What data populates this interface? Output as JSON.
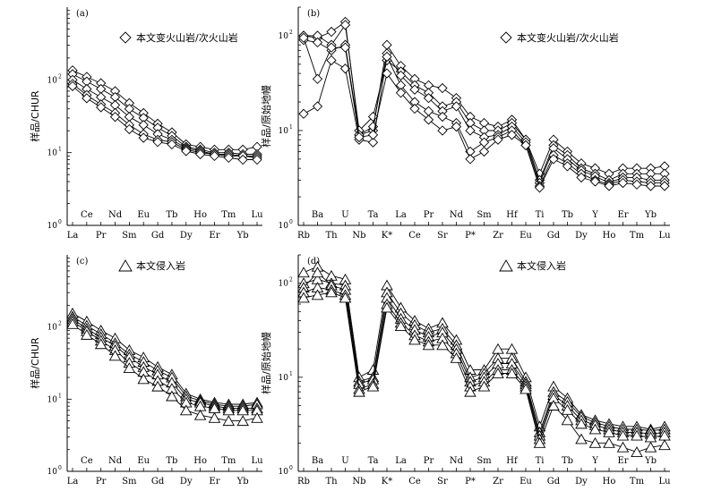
{
  "chart_data": [
    {
      "panel_label": "(a)",
      "type": "line",
      "marker": "diamond",
      "legend": "本文变火山岩/次火山岩",
      "ylabel": "样品/CHUR",
      "yscale": "log",
      "ylim": [
        1,
        1000
      ],
      "yticks": [
        {
          "base": "10",
          "exp": "0"
        },
        {
          "base": "10",
          "exp": "1"
        },
        {
          "base": "10",
          "exp": "2"
        }
      ],
      "categories": [
        "La",
        "Ce",
        "Pr",
        "Nd",
        "Sm",
        "Eu",
        "Gd",
        "Tb",
        "Dy",
        "Ho",
        "Er",
        "Tm",
        "Yb",
        "Lu"
      ],
      "series": [
        {
          "values": [
            135,
            110,
            90,
            70,
            48,
            35,
            25,
            19,
            13,
            12,
            11,
            11,
            11,
            12
          ]
        },
        {
          "values": [
            120,
            95,
            75,
            58,
            40,
            30,
            22,
            17,
            12,
            11,
            10,
            10,
            9.5,
            9.5
          ]
        },
        {
          "values": [
            100,
            75,
            58,
            45,
            31,
            24,
            18,
            15,
            11.5,
            10.5,
            9.5,
            9.5,
            9,
            9
          ]
        },
        {
          "values": [
            88,
            62,
            46,
            35,
            24,
            18,
            15,
            14,
            11,
            10,
            9.5,
            9,
            9,
            8.5
          ]
        },
        {
          "values": [
            82,
            56,
            42,
            31,
            21,
            16,
            14,
            13,
            10.5,
            9.5,
            9,
            8.5,
            8,
            8
          ]
        }
      ]
    },
    {
      "panel_label": "(b)",
      "type": "line",
      "marker": "diamond",
      "legend": "本文变火山岩/次火山岩",
      "ylabel": "样品/原始地幔",
      "yscale": "log",
      "ylim": [
        1,
        200
      ],
      "yticks": [
        {
          "base": "10",
          "exp": "0"
        },
        {
          "base": "10",
          "exp": "1"
        },
        {
          "base": "10",
          "exp": "2"
        }
      ],
      "categories": [
        "Rb",
        "Ba",
        "Th",
        "U",
        "Nb",
        "Ta",
        "K*",
        "La",
        "Ce",
        "Pr",
        "Sr",
        "Nd",
        "P*",
        "Sm",
        "Zr",
        "Hf",
        "Eu",
        "Ti",
        "Gd",
        "Tb",
        "Dy",
        "Y",
        "Ho",
        "Er",
        "Tm",
        "Yb",
        "Lu"
      ],
      "series": [
        {
          "values": [
            100,
            95,
            110,
            140,
            9,
            10,
            80,
            48,
            35,
            30,
            28,
            22,
            14,
            12,
            11,
            13,
            8,
            3.5,
            8,
            6,
            4.5,
            4,
            3.5,
            4,
            4,
            4,
            4.2
          ]
        },
        {
          "values": [
            100,
            100,
            80,
            130,
            10,
            14,
            55,
            42,
            30,
            25,
            18,
            20,
            12,
            10,
            10,
            12,
            8,
            3.0,
            7,
            5.5,
            4,
            3.5,
            3,
            3.5,
            3.5,
            3.5,
            3.5
          ]
        },
        {
          "values": [
            90,
            85,
            70,
            80,
            9,
            11,
            65,
            38,
            27,
            22,
            16,
            18,
            10,
            8.5,
            9,
            11,
            7.5,
            2.8,
            6.5,
            5,
            3.8,
            3.3,
            2.8,
            3.2,
            3.2,
            3,
            3
          ]
        },
        {
          "values": [
            15,
            18,
            55,
            45,
            8,
            7.5,
            60,
            30,
            20,
            16,
            14,
            12,
            6,
            7.5,
            8.5,
            10,
            7,
            2.6,
            5.5,
            4.5,
            3.5,
            3,
            2.7,
            3,
            2.9,
            2.8,
            2.8
          ]
        },
        {
          "values": [
            95,
            35,
            75,
            75,
            8.5,
            9,
            40,
            25,
            17,
            13,
            10,
            11,
            5,
            6,
            8,
            9,
            7,
            2.5,
            5,
            4.2,
            3.2,
            2.9,
            2.6,
            2.8,
            2.7,
            2.6,
            2.6
          ]
        }
      ]
    },
    {
      "panel_label": "(c)",
      "type": "line",
      "marker": "triangle",
      "legend": "本文侵入岩",
      "ylabel": "样品/CHUR",
      "yscale": "log",
      "ylim": [
        1,
        1000
      ],
      "yticks": [
        {
          "base": "10",
          "exp": "0"
        },
        {
          "base": "10",
          "exp": "1"
        },
        {
          "base": "10",
          "exp": "2"
        }
      ],
      "categories": [
        "La",
        "Ce",
        "Pr",
        "Nd",
        "Sm",
        "Eu",
        "Gd",
        "Tb",
        "Dy",
        "Ho",
        "Er",
        "Tm",
        "Yb",
        "Lu"
      ],
      "series": [
        {
          "values": [
            155,
            120,
            90,
            70,
            48,
            38,
            28,
            22,
            12,
            10,
            9,
            8.5,
            8.5,
            9
          ]
        },
        {
          "values": [
            140,
            105,
            80,
            60,
            42,
            33,
            25,
            20,
            11,
            9.5,
            8.5,
            8,
            8,
            8.5
          ]
        },
        {
          "values": [
            130,
            95,
            72,
            55,
            38,
            28,
            22,
            17,
            10,
            9,
            8,
            7.5,
            7.5,
            7.5
          ]
        },
        {
          "values": [
            120,
            88,
            65,
            48,
            32,
            24,
            18,
            14,
            9,
            8,
            7.5,
            7,
            7,
            7
          ]
        },
        {
          "values": [
            110,
            78,
            58,
            40,
            27,
            19,
            15,
            11,
            7,
            6,
            5.5,
            5,
            5,
            5.5
          ]
        }
      ]
    },
    {
      "panel_label": "(d)",
      "type": "line",
      "marker": "triangle",
      "legend": "本文侵入岩",
      "ylabel": "样品/原始地幔",
      "yscale": "log",
      "ylim": [
        1,
        200
      ],
      "yticks": [
        {
          "base": "10",
          "exp": "0"
        },
        {
          "base": "10",
          "exp": "1"
        },
        {
          "base": "10",
          "exp": "2"
        }
      ],
      "categories": [
        "Rb",
        "Ba",
        "Th",
        "U",
        "Nb",
        "Ta",
        "K*",
        "La",
        "Ce",
        "Pr",
        "Sr",
        "Nd",
        "P*",
        "Sm",
        "Zr",
        "Hf",
        "Eu",
        "Ti",
        "Gd",
        "Tb",
        "Dy",
        "Y",
        "Ho",
        "Er",
        "Tm",
        "Yb",
        "Lu"
      ],
      "series": [
        {
          "values": [
            130,
            150,
            120,
            110,
            10,
            12,
            95,
            55,
            40,
            33,
            38,
            25,
            12,
            12,
            20,
            20,
            10,
            3.0,
            8,
            6,
            4,
            3.5,
            3.2,
            3,
            3,
            2.8,
            3
          ]
        },
        {
          "values": [
            100,
            110,
            100,
            95,
            9,
            10,
            80,
            48,
            36,
            30,
            33,
            22,
            10,
            11,
            16,
            16,
            9,
            2.6,
            7,
            5.5,
            3.8,
            3.3,
            3,
            2.8,
            2.8,
            2.7,
            2.8
          ]
        },
        {
          "values": [
            90,
            130,
            95,
            85,
            8.5,
            9.5,
            70,
            42,
            32,
            27,
            30,
            20,
            9,
            10,
            14,
            14,
            8.5,
            2.4,
            6.5,
            5,
            3.5,
            3.1,
            2.8,
            2.6,
            2.6,
            2.5,
            2.6
          ]
        },
        {
          "values": [
            80,
            90,
            85,
            75,
            7.5,
            8.5,
            60,
            38,
            28,
            24,
            26,
            18,
            8,
            9,
            12,
            12,
            8,
            2.2,
            6,
            4.5,
            3.2,
            2.8,
            2.6,
            2.4,
            2.4,
            2.3,
            2.4
          ]
        },
        {
          "values": [
            70,
            75,
            80,
            70,
            7,
            8,
            55,
            35,
            25,
            22,
            22,
            16,
            7,
            8,
            11,
            11,
            7.5,
            2.0,
            5,
            3.5,
            2.2,
            2,
            2,
            1.8,
            1.6,
            1.8,
            1.9
          ]
        }
      ]
    }
  ]
}
